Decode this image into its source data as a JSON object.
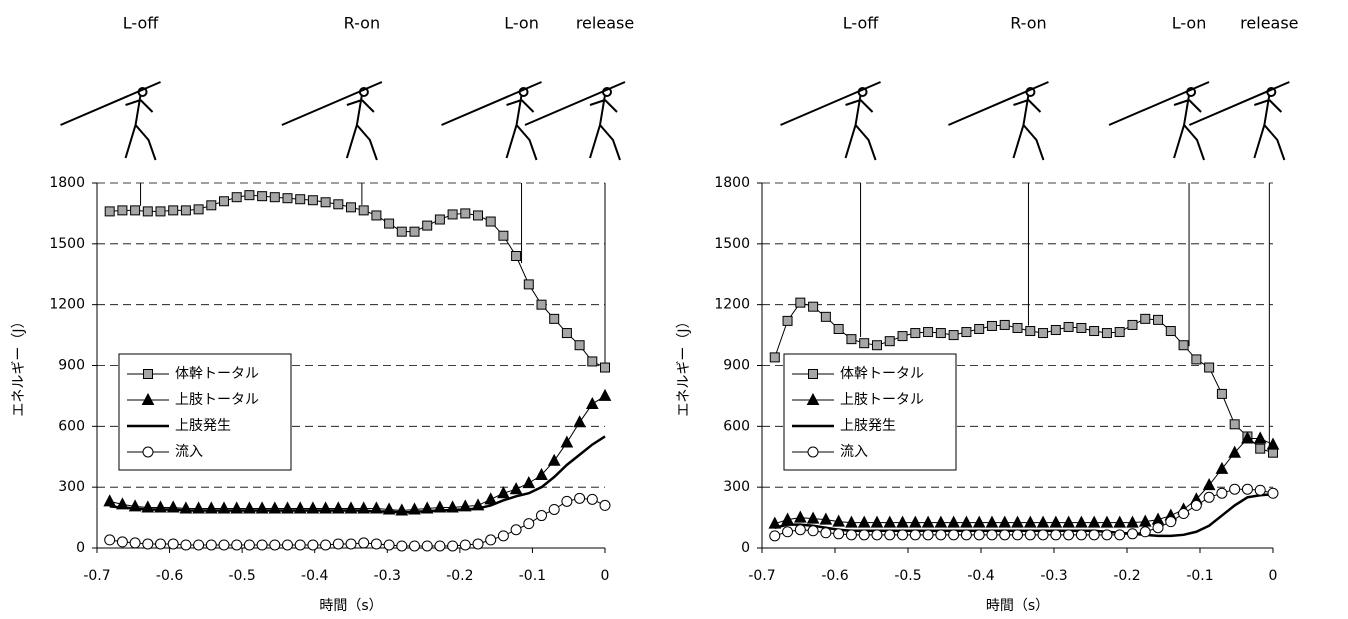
{
  "chart_data": [
    {
      "type": "line",
      "xlabel": "時間（s）",
      "ylabel": "エネルギー（J）",
      "xlim": [
        -0.7,
        0
      ],
      "ylim": [
        0,
        1800
      ],
      "xticks": [
        -0.7,
        -0.6,
        -0.5,
        -0.4,
        -0.3,
        -0.2,
        -0.1,
        0
      ],
      "yticks": [
        0,
        300,
        600,
        900,
        1200,
        1500,
        1800
      ],
      "grid": true,
      "legend": "center left",
      "events": [
        {
          "label": "L-off",
          "x": -0.64
        },
        {
          "label": "R-on",
          "x": -0.335
        },
        {
          "label": "L-on",
          "x": -0.115
        },
        {
          "label": "release",
          "x": 0
        }
      ],
      "x": [
        -0.6825,
        -0.665,
        -0.6475,
        -0.63,
        -0.6125,
        -0.595,
        -0.5775,
        -0.56,
        -0.5425,
        -0.525,
        -0.5075,
        -0.49,
        -0.4725,
        -0.455,
        -0.4375,
        -0.42,
        -0.4025,
        -0.385,
        -0.3675,
        -0.35,
        -0.3325,
        -0.315,
        -0.2975,
        -0.28,
        -0.2625,
        -0.245,
        -0.2275,
        -0.21,
        -0.1925,
        -0.175,
        -0.1575,
        -0.14,
        -0.1225,
        -0.105,
        -0.0875,
        -0.07,
        -0.0525,
        -0.035,
        -0.0175,
        0
      ],
      "series": [
        {
          "name": "体幹トータル",
          "color": "#a6a6a6",
          "marker": "square",
          "values": [
            1660,
            1665,
            1665,
            1660,
            1660,
            1665,
            1665,
            1670,
            1690,
            1710,
            1730,
            1740,
            1735,
            1730,
            1725,
            1720,
            1715,
            1705,
            1695,
            1680,
            1665,
            1640,
            1600,
            1560,
            1560,
            1590,
            1620,
            1645,
            1650,
            1640,
            1610,
            1540,
            1440,
            1300,
            1200,
            1130,
            1060,
            1000,
            920,
            890
          ]
        },
        {
          "name": "上肢トータル",
          "color": "#000000",
          "marker": "triangle",
          "values": [
            230,
            215,
            205,
            200,
            200,
            200,
            195,
            195,
            195,
            195,
            195,
            195,
            195,
            195,
            195,
            195,
            195,
            195,
            195,
            195,
            195,
            195,
            190,
            185,
            190,
            195,
            200,
            200,
            205,
            210,
            240,
            270,
            290,
            320,
            360,
            430,
            520,
            620,
            710,
            750
          ]
        },
        {
          "name": "上肢発生",
          "color": "#000000",
          "marker": "none",
          "values": [
            205,
            200,
            195,
            190,
            190,
            190,
            185,
            185,
            185,
            185,
            185,
            185,
            185,
            185,
            185,
            185,
            185,
            185,
            185,
            185,
            185,
            180,
            180,
            175,
            178,
            182,
            185,
            188,
            190,
            195,
            210,
            235,
            255,
            270,
            300,
            350,
            410,
            460,
            510,
            550
          ]
        },
        {
          "name": "流入",
          "color": "#ffffff",
          "marker": "circle",
          "values": [
            40,
            30,
            25,
            20,
            20,
            20,
            15,
            15,
            15,
            15,
            15,
            15,
            15,
            15,
            15,
            15,
            15,
            15,
            20,
            20,
            25,
            20,
            15,
            10,
            10,
            10,
            10,
            10,
            15,
            20,
            40,
            60,
            90,
            120,
            160,
            190,
            230,
            245,
            240,
            210
          ]
        }
      ]
    },
    {
      "type": "line",
      "xlabel": "時間（s）",
      "ylabel": "エネルギー（J）",
      "xlim": [
        -0.7,
        0
      ],
      "ylim": [
        0,
        1800
      ],
      "xticks": [
        -0.7,
        -0.6,
        -0.5,
        -0.4,
        -0.3,
        -0.2,
        -0.1,
        0
      ],
      "yticks": [
        0,
        300,
        600,
        900,
        1200,
        1500,
        1800
      ],
      "grid": true,
      "legend": "center left",
      "events": [
        {
          "label": "L-off",
          "x": -0.565
        },
        {
          "label": "R-on",
          "x": -0.335
        },
        {
          "label": "L-on",
          "x": -0.115
        },
        {
          "label": "release",
          "x": -0.005
        }
      ],
      "x": [
        -0.6825,
        -0.665,
        -0.6475,
        -0.63,
        -0.6125,
        -0.595,
        -0.5775,
        -0.56,
        -0.5425,
        -0.525,
        -0.5075,
        -0.49,
        -0.4725,
        -0.455,
        -0.4375,
        -0.42,
        -0.4025,
        -0.385,
        -0.3675,
        -0.35,
        -0.3325,
        -0.315,
        -0.2975,
        -0.28,
        -0.2625,
        -0.245,
        -0.2275,
        -0.21,
        -0.1925,
        -0.175,
        -0.1575,
        -0.14,
        -0.1225,
        -0.105,
        -0.0875,
        -0.07,
        -0.0525,
        -0.035,
        -0.0175,
        0
      ],
      "series": [
        {
          "name": "体幹トータル",
          "color": "#a6a6a6",
          "marker": "square",
          "values": [
            940,
            1120,
            1210,
            1190,
            1140,
            1080,
            1030,
            1010,
            1000,
            1020,
            1045,
            1060,
            1065,
            1060,
            1050,
            1065,
            1080,
            1095,
            1100,
            1085,
            1070,
            1060,
            1075,
            1090,
            1085,
            1070,
            1060,
            1065,
            1100,
            1130,
            1125,
            1070,
            1000,
            930,
            890,
            760,
            610,
            550,
            490,
            470
          ]
        },
        {
          "name": "上肢トータル",
          "color": "#000000",
          "marker": "triangle",
          "values": [
            120,
            140,
            150,
            145,
            140,
            130,
            125,
            125,
            125,
            125,
            125,
            125,
            125,
            125,
            125,
            125,
            125,
            125,
            125,
            125,
            125,
            125,
            125,
            125,
            125,
            125,
            125,
            125,
            125,
            130,
            140,
            160,
            190,
            240,
            310,
            390,
            470,
            540,
            540,
            510
          ]
        },
        {
          "name": "上肢発生",
          "color": "#000000",
          "marker": "none",
          "values": [
            100,
            115,
            115,
            110,
            100,
            90,
            85,
            85,
            85,
            85,
            85,
            85,
            85,
            85,
            85,
            85,
            85,
            85,
            85,
            85,
            85,
            85,
            85,
            85,
            85,
            85,
            80,
            75,
            70,
            65,
            60,
            60,
            65,
            80,
            110,
            160,
            210,
            250,
            260,
            265
          ]
        },
        {
          "name": "流入",
          "color": "#ffffff",
          "marker": "circle",
          "values": [
            60,
            80,
            90,
            85,
            75,
            70,
            65,
            65,
            65,
            65,
            65,
            65,
            65,
            65,
            65,
            65,
            65,
            65,
            65,
            65,
            65,
            65,
            65,
            65,
            65,
            65,
            65,
            65,
            70,
            80,
            100,
            130,
            170,
            210,
            250,
            270,
            290,
            290,
            285,
            270
          ]
        }
      ]
    }
  ]
}
